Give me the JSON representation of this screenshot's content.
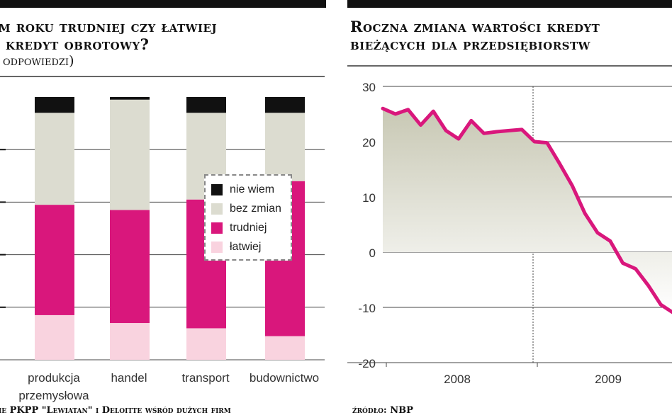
{
  "left_panel": {
    "title_line1": "m roku trudniej czy łatwiej",
    "title_line2": "kredyt obrotowy?",
    "subtitle": "odpowiedzi)",
    "source": "ie PKPP \"Lewiatan\" i Deloitte wśród dużych firm"
  },
  "right_panel": {
    "title_line1": "Roczna zmiana wartości kredyt",
    "title_line2": "bieżących dla przedsiębiorstw",
    "source": "źródło: NBP"
  },
  "colors": {
    "nie_wiem": "#111111",
    "bez_zmian": "#dcdcd0",
    "trudniej": "#d9177c",
    "latwiej": "#f9d3df",
    "line": "#d9177c"
  },
  "chart_data": [
    {
      "type": "bar",
      "stacked": true,
      "categories": [
        "produkcja\nprzemysłowa",
        "handel",
        "transport",
        "budownictwo"
      ],
      "series": [
        {
          "name": "łatwiej",
          "values": [
            17,
            14,
            12,
            9
          ]
        },
        {
          "name": "trudniej",
          "values": [
            42,
            43,
            49,
            59
          ]
        },
        {
          "name": "bez zmian",
          "values": [
            35,
            42,
            33,
            26
          ]
        },
        {
          "name": "nie wiem",
          "values": [
            6,
            1,
            6,
            6
          ]
        }
      ],
      "ylim": [
        0,
        100
      ],
      "grid": true,
      "legend": "inside-right"
    },
    {
      "type": "area",
      "x_ticks": [
        "2008",
        "2009"
      ],
      "values": [
        26,
        25,
        25.8,
        23,
        25.5,
        22,
        20.5,
        23.8,
        21.5,
        21.8,
        22,
        22.2,
        20,
        19.8,
        16,
        12,
        7,
        3.5,
        2,
        -2,
        -3,
        -6,
        -9.5,
        -11
      ],
      "yticks": [
        30,
        20,
        10,
        0,
        -10,
        -20
      ],
      "ylim": [
        -20,
        30
      ],
      "grid": true
    }
  ]
}
